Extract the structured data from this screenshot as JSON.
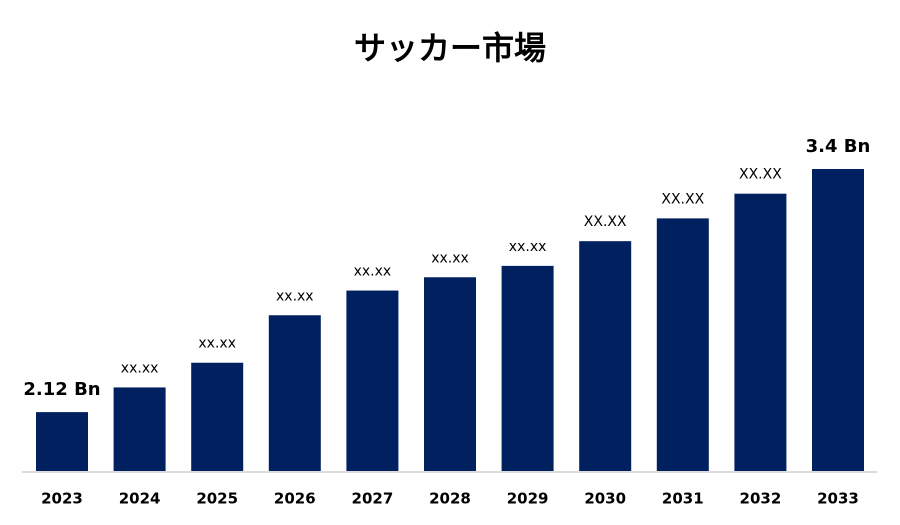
{
  "chart_data": {
    "type": "bar",
    "title": "サッカー市場",
    "categories": [
      "2023",
      "2024",
      "2025",
      "2026",
      "2027",
      "2028",
      "2029",
      "2030",
      "2031",
      "2032",
      "2033"
    ],
    "values": [
      2.12,
      2.25,
      2.38,
      2.63,
      2.76,
      2.83,
      2.89,
      3.02,
      3.14,
      3.27,
      3.4
    ],
    "value_labels": [
      "2.12  Bn",
      "xx.xx",
      "xx.xx",
      "xx.xx",
      "xx.xx",
      "xx.xx",
      "xx.xx",
      "XX.XX",
      "XX.XX",
      "XX.XX",
      "3.4 Bn"
    ],
    "color": "#002060",
    "ylim": [
      1.81,
      3.4
    ]
  }
}
